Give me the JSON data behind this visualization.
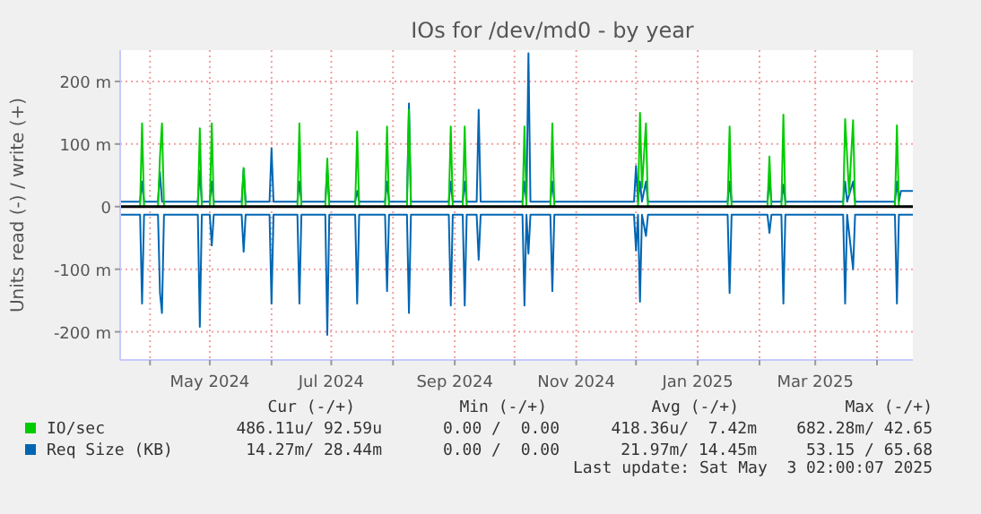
{
  "chart_data": {
    "type": "line",
    "title": "IOs for /dev/md0 - by year",
    "ylabel": "Units read (-) / write (+)",
    "xlim": [
      "2024-03-17",
      "2025-04-19"
    ],
    "xticks": [
      {
        "value": "2024-04-01",
        "label": null
      },
      {
        "value": "2024-05-01",
        "label": "May 2024"
      },
      {
        "value": "2024-06-01",
        "label": null
      },
      {
        "value": "2024-07-01",
        "label": "Jul 2024"
      },
      {
        "value": "2024-08-01",
        "label": null
      },
      {
        "value": "2024-09-01",
        "label": "Sep 2024"
      },
      {
        "value": "2024-10-01",
        "label": null
      },
      {
        "value": "2024-11-01",
        "label": "Nov 2024"
      },
      {
        "value": "2024-12-01",
        "label": null
      },
      {
        "value": "2025-01-01",
        "label": "Jan 2025"
      },
      {
        "value": "2025-02-01",
        "label": null
      },
      {
        "value": "2025-03-01",
        "label": "Mar 2025"
      },
      {
        "value": "2025-04-01",
        "label": null
      }
    ],
    "ylim": [
      -245,
      250
    ],
    "yticks": [
      {
        "value": -200,
        "label": "-200 m"
      },
      {
        "value": -100,
        "label": "-100 m"
      },
      0,
      {
        "value": 100,
        "label": "100 m"
      },
      {
        "value": 200,
        "label": "200 m"
      }
    ],
    "grid": true,
    "legend": "bottom",
    "line_style": "solid",
    "ref_lines": [
      {
        "axis": "y",
        "value": 0,
        "color": "#000000"
      }
    ],
    "series": [
      {
        "name": "IO/sec",
        "color": "#00cc00",
        "x": [
          "2024-03-17",
          "2024-03-27",
          "2024-03-28",
          "2024-03-29",
          "2024-04-05",
          "2024-04-06",
          "2024-04-07",
          "2024-04-08",
          "2024-04-25",
          "2024-04-26",
          "2024-04-27",
          "2024-05-01",
          "2024-05-02",
          "2024-05-03",
          "2024-05-17",
          "2024-05-18",
          "2024-05-19",
          "2024-06-14",
          "2024-06-15",
          "2024-06-16",
          "2024-06-28",
          "2024-06-29",
          "2024-06-30",
          "2024-07-13",
          "2024-07-14",
          "2024-07-15",
          "2024-07-28",
          "2024-07-29",
          "2024-07-30",
          "2024-08-08",
          "2024-08-09",
          "2024-08-10",
          "2024-08-29",
          "2024-08-30",
          "2024-08-31",
          "2024-09-05",
          "2024-09-06",
          "2024-09-07",
          "2024-10-05",
          "2024-10-06",
          "2024-10-07",
          "2024-10-19",
          "2024-10-20",
          "2024-10-21",
          "2024-12-02",
          "2024-12-03",
          "2024-12-04",
          "2024-12-06",
          "2024-12-07",
          "2025-01-16",
          "2025-01-17",
          "2025-01-18",
          "2025-02-05",
          "2025-02-06",
          "2025-02-07",
          "2025-02-12",
          "2025-02-13",
          "2025-02-14",
          "2025-03-15",
          "2025-03-16",
          "2025-03-18",
          "2025-03-20",
          "2025-03-21",
          "2025-04-10",
          "2025-04-11",
          "2025-04-12",
          "2025-04-19"
        ],
        "values": [
          0,
          0,
          133,
          0,
          0,
          80,
          133,
          0,
          0,
          125,
          0,
          0,
          133,
          0,
          0,
          62,
          0,
          0,
          133,
          0,
          0,
          77,
          0,
          0,
          120,
          0,
          0,
          128,
          0,
          0,
          155,
          0,
          0,
          128,
          0,
          0,
          128,
          0,
          0,
          128,
          0,
          0,
          133,
          0,
          0,
          150,
          30,
          133,
          0,
          0,
          128,
          0,
          0,
          80,
          0,
          0,
          147,
          0,
          0,
          140,
          20,
          138,
          0,
          0,
          130,
          0,
          0
        ]
      },
      {
        "name": "Req Size (KB)",
        "color": "#0066b3",
        "x": [
          "2024-03-17",
          "2024-03-27",
          "2024-03-28",
          "2024-03-29",
          "2024-04-05",
          "2024-04-06",
          "2024-04-07",
          "2024-04-25",
          "2024-04-26",
          "2024-04-27",
          "2024-05-01",
          "2024-05-02",
          "2024-05-03",
          "2024-05-17",
          "2024-05-18",
          "2024-05-19",
          "2024-05-31",
          "2024-06-01",
          "2024-06-02",
          "2024-06-14",
          "2024-06-15",
          "2024-06-16",
          "2024-06-28",
          "2024-06-29",
          "2024-06-30",
          "2024-07-13",
          "2024-07-14",
          "2024-07-15",
          "2024-07-28",
          "2024-07-29",
          "2024-07-30",
          "2024-08-08",
          "2024-08-09",
          "2024-08-10",
          "2024-08-29",
          "2024-08-30",
          "2024-08-31",
          "2024-09-05",
          "2024-09-06",
          "2024-09-07",
          "2024-09-12",
          "2024-09-13",
          "2024-09-14",
          "2024-10-05",
          "2024-10-06",
          "2024-10-07",
          "2024-10-08",
          "2024-10-09",
          "2024-10-19",
          "2024-10-20",
          "2024-10-21",
          "2024-11-30",
          "2024-12-01",
          "2024-12-02",
          "2024-12-03",
          "2024-12-04",
          "2024-12-06",
          "2024-12-07",
          "2025-01-16",
          "2025-01-17",
          "2025-01-18",
          "2025-02-05",
          "2025-02-06",
          "2025-02-07",
          "2025-02-12",
          "2025-02-13",
          "2025-02-14",
          "2025-03-15",
          "2025-03-16",
          "2025-03-17",
          "2025-03-20",
          "2025-03-21",
          "2025-04-10",
          "2025-04-11",
          "2025-04-12",
          "2025-04-13",
          "2025-04-19"
        ],
        "values": [
          8,
          8,
          40,
          8,
          8,
          55,
          8,
          8,
          57,
          8,
          8,
          40,
          8,
          8,
          60,
          8,
          8,
          93,
          8,
          8,
          40,
          8,
          8,
          60,
          8,
          8,
          25,
          8,
          8,
          40,
          8,
          8,
          165,
          8,
          8,
          40,
          8,
          8,
          40,
          8,
          8,
          155,
          8,
          8,
          40,
          8,
          245,
          8,
          8,
          40,
          8,
          8,
          65,
          8,
          40,
          8,
          40,
          8,
          8,
          40,
          8,
          8,
          45,
          8,
          8,
          35,
          8,
          8,
          40,
          8,
          40,
          8,
          8,
          40,
          8,
          25,
          25
        ]
      },
      {
        "color": "#0066b3",
        "x": [
          "2024-03-17",
          "2024-03-27",
          "2024-03-28",
          "2024-03-29",
          "2024-04-05",
          "2024-04-06",
          "2024-04-07",
          "2024-04-08",
          "2024-04-25",
          "2024-04-26",
          "2024-04-27",
          "2024-05-01",
          "2024-05-02",
          "2024-05-03",
          "2024-05-17",
          "2024-05-18",
          "2024-05-19",
          "2024-05-31",
          "2024-06-01",
          "2024-06-02",
          "2024-06-14",
          "2024-06-15",
          "2024-06-16",
          "2024-06-28",
          "2024-06-29",
          "2024-06-30",
          "2024-07-13",
          "2024-07-14",
          "2024-07-15",
          "2024-07-28",
          "2024-07-29",
          "2024-07-30",
          "2024-08-08",
          "2024-08-09",
          "2024-08-10",
          "2024-08-29",
          "2024-08-30",
          "2024-08-31",
          "2024-09-05",
          "2024-09-06",
          "2024-09-07",
          "2024-09-12",
          "2024-09-13",
          "2024-09-14",
          "2024-10-05",
          "2024-10-06",
          "2024-10-07",
          "2024-10-08",
          "2024-10-09",
          "2024-10-19",
          "2024-10-20",
          "2024-10-21",
          "2024-11-30",
          "2024-12-01",
          "2024-12-02",
          "2024-12-03",
          "2024-12-04",
          "2024-12-06",
          "2024-12-07",
          "2025-01-16",
          "2025-01-17",
          "2025-01-18",
          "2025-02-05",
          "2025-02-06",
          "2025-02-07",
          "2025-02-12",
          "2025-02-13",
          "2025-02-14",
          "2025-03-15",
          "2025-03-16",
          "2025-03-17",
          "2025-03-20",
          "2025-03-21",
          "2025-04-10",
          "2025-04-11",
          "2025-04-12",
          "2025-04-19"
        ],
        "values": [
          -13,
          -13,
          -155,
          -13,
          -13,
          -138,
          -170,
          -13,
          -13,
          -192,
          -13,
          -13,
          -62,
          -13,
          -13,
          -72,
          -13,
          -13,
          -155,
          -13,
          -13,
          -155,
          -13,
          -13,
          -205,
          -13,
          -13,
          -155,
          -13,
          -13,
          -135,
          -13,
          -13,
          -170,
          -13,
          -13,
          -158,
          -13,
          -13,
          -158,
          -13,
          -13,
          -85,
          -13,
          -13,
          -158,
          -13,
          -75,
          -13,
          -13,
          -135,
          -13,
          -13,
          -70,
          -13,
          -152,
          -13,
          -47,
          -13,
          -13,
          -138,
          -13,
          -13,
          -42,
          -13,
          -13,
          -155,
          -13,
          -13,
          -155,
          -13,
          -100,
          -13,
          -13,
          -155,
          -13,
          -13
        ]
      }
    ],
    "annotations": [
      "Cur (-/+)",
      "Min (-/+)",
      "Avg (-/+)",
      "Max (-/+)",
      "486.11u/ 92.59u",
      "0.00 /  0.00",
      "418.36u/  7.42m",
      "682.28m/ 42.65",
      "14.27m/ 28.44m",
      "0.00 /  0.00",
      "21.97m/ 14.45m",
      "53.15 / 65.68",
      "Last update: Sat May  3 02:00:07 2025"
    ]
  }
}
